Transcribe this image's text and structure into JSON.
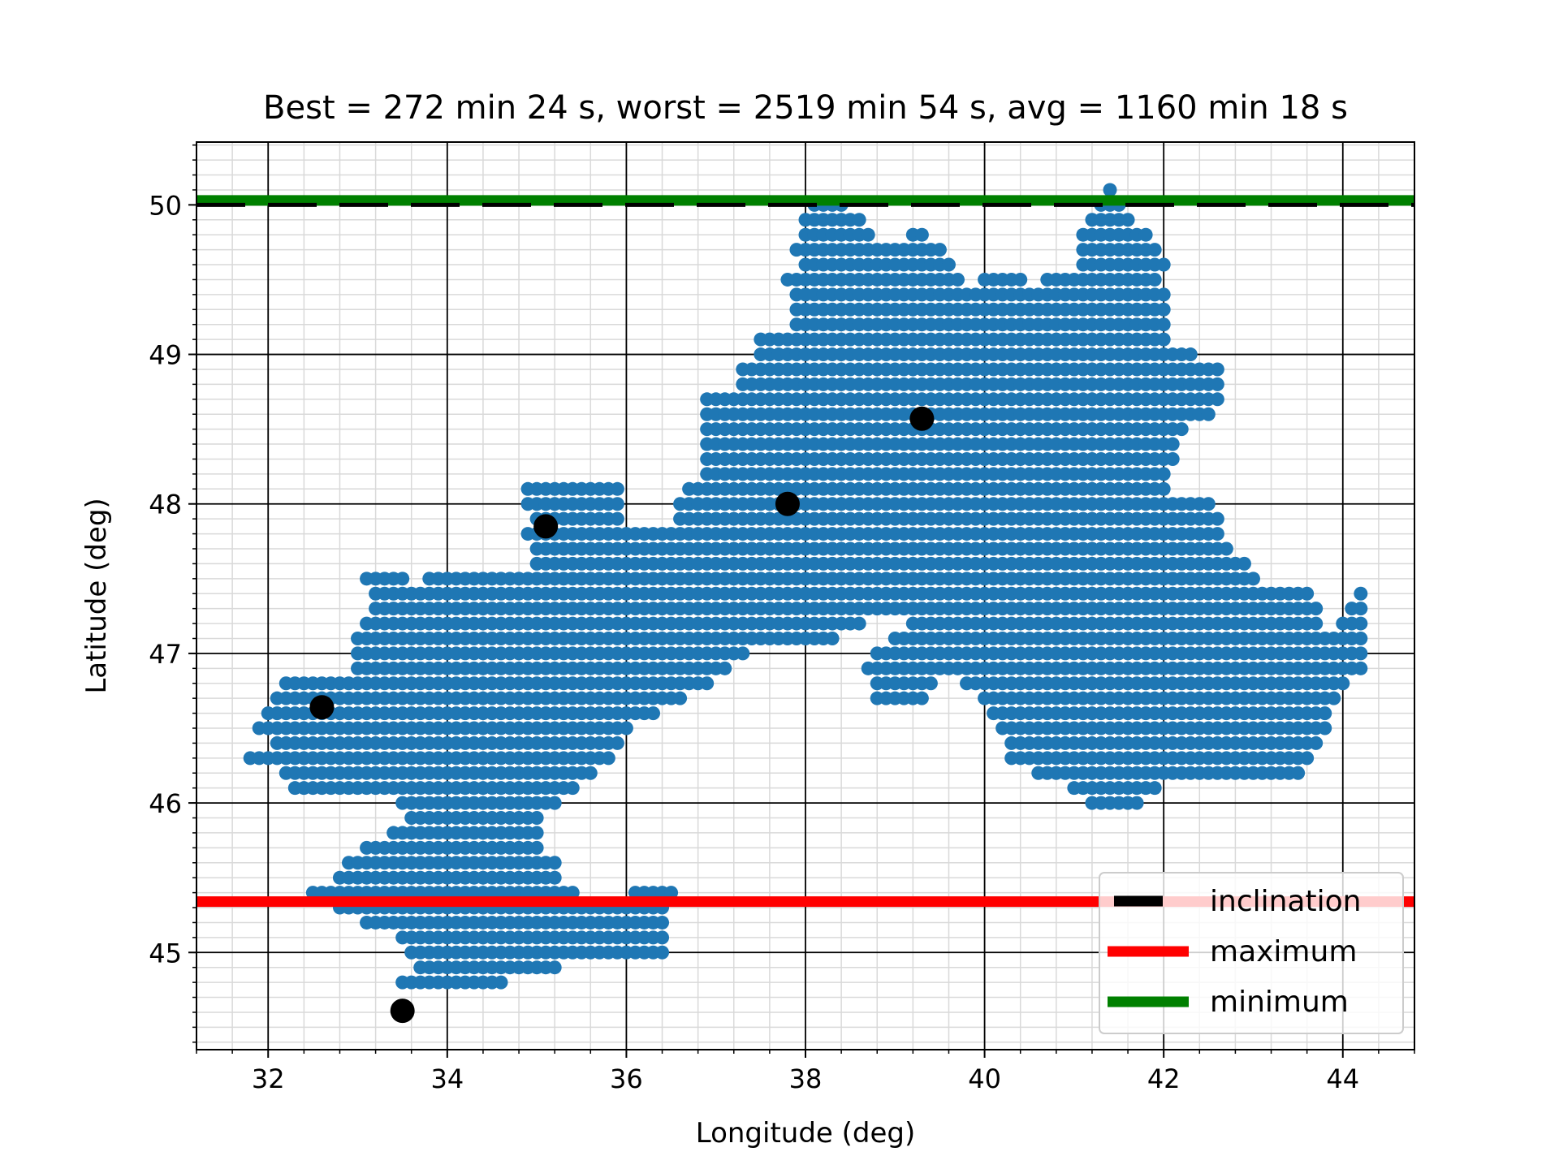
{
  "chart_data": {
    "type": "scatter",
    "title": "Best = 272 min 24 s, worst = 2519 min 54 s, avg = 1160 min 18 s",
    "xlabel": "Longitude (deg)",
    "ylabel": "Latitude (deg)",
    "xlim": [
      31.2,
      44.8
    ],
    "ylim": [
      44.35,
      50.42
    ],
    "x_ticks": [
      32,
      34,
      36,
      38,
      40,
      42,
      44
    ],
    "y_ticks": [
      45,
      46,
      47,
      48,
      49,
      50
    ],
    "x_tick_labels": [
      "32",
      "34",
      "36",
      "38",
      "40",
      "42",
      "44"
    ],
    "y_tick_labels": [
      "45",
      "46",
      "47",
      "48",
      "49",
      "50"
    ],
    "x_minor_step": 0.4,
    "y_minor_step": 0.1,
    "grid": true,
    "legend_position": "lower right",
    "grid_spacing_deg": 0.1,
    "scatter_color": "#1f77b4",
    "region_rows": [
      {
        "lat": 50.1,
        "ranges": [
          [
            41.4,
            41.4
          ]
        ]
      },
      {
        "lat": 50.0,
        "ranges": [
          [
            38.1,
            38.4
          ],
          [
            41.3,
            41.5
          ]
        ]
      },
      {
        "lat": 49.9,
        "ranges": [
          [
            38.0,
            38.6
          ],
          [
            41.2,
            41.6
          ]
        ]
      },
      {
        "lat": 49.8,
        "ranges": [
          [
            38.0,
            38.7
          ],
          [
            39.2,
            39.3
          ],
          [
            41.1,
            41.8
          ]
        ]
      },
      {
        "lat": 49.7,
        "ranges": [
          [
            37.9,
            39.5
          ],
          [
            41.1,
            41.9
          ]
        ]
      },
      {
        "lat": 49.6,
        "ranges": [
          [
            38.0,
            39.6
          ],
          [
            41.1,
            42.0
          ]
        ]
      },
      {
        "lat": 49.5,
        "ranges": [
          [
            37.8,
            39.7
          ],
          [
            40.0,
            40.4
          ],
          [
            40.7,
            41.9
          ]
        ]
      },
      {
        "lat": 49.4,
        "ranges": [
          [
            37.9,
            42.0
          ]
        ]
      },
      {
        "lat": 49.3,
        "ranges": [
          [
            37.9,
            42.0
          ]
        ]
      },
      {
        "lat": 49.2,
        "ranges": [
          [
            37.9,
            42.0
          ]
        ]
      },
      {
        "lat": 49.1,
        "ranges": [
          [
            37.5,
            42.0
          ]
        ]
      },
      {
        "lat": 49.0,
        "ranges": [
          [
            37.5,
            42.3
          ]
        ]
      },
      {
        "lat": 48.9,
        "ranges": [
          [
            37.3,
            42.6
          ]
        ]
      },
      {
        "lat": 48.8,
        "ranges": [
          [
            37.3,
            42.6
          ]
        ]
      },
      {
        "lat": 48.7,
        "ranges": [
          [
            36.9,
            42.6
          ]
        ]
      },
      {
        "lat": 48.6,
        "ranges": [
          [
            36.9,
            42.5
          ]
        ]
      },
      {
        "lat": 48.5,
        "ranges": [
          [
            36.9,
            42.2
          ]
        ]
      },
      {
        "lat": 48.4,
        "ranges": [
          [
            36.9,
            42.1
          ]
        ]
      },
      {
        "lat": 48.3,
        "ranges": [
          [
            36.9,
            42.1
          ]
        ]
      },
      {
        "lat": 48.2,
        "ranges": [
          [
            36.9,
            42.0
          ]
        ]
      },
      {
        "lat": 48.1,
        "ranges": [
          [
            34.9,
            35.9
          ],
          [
            36.7,
            42.0
          ]
        ]
      },
      {
        "lat": 48.0,
        "ranges": [
          [
            34.9,
            35.9
          ],
          [
            36.6,
            42.5
          ]
        ]
      },
      {
        "lat": 47.9,
        "ranges": [
          [
            35.0,
            35.9
          ],
          [
            36.6,
            42.6
          ]
        ]
      },
      {
        "lat": 47.8,
        "ranges": [
          [
            34.9,
            42.6
          ]
        ]
      },
      {
        "lat": 47.7,
        "ranges": [
          [
            35.0,
            42.7
          ]
        ]
      },
      {
        "lat": 47.6,
        "ranges": [
          [
            35.0,
            42.9
          ]
        ]
      },
      {
        "lat": 47.5,
        "ranges": [
          [
            33.1,
            33.5
          ],
          [
            33.8,
            43.0
          ]
        ]
      },
      {
        "lat": 47.4,
        "ranges": [
          [
            33.2,
            43.6
          ],
          [
            44.2,
            44.2
          ]
        ]
      },
      {
        "lat": 47.3,
        "ranges": [
          [
            33.2,
            43.7
          ],
          [
            44.1,
            44.2
          ]
        ]
      },
      {
        "lat": 47.2,
        "ranges": [
          [
            33.1,
            38.6
          ],
          [
            39.2,
            43.7
          ],
          [
            44.0,
            44.2
          ]
        ]
      },
      {
        "lat": 47.1,
        "ranges": [
          [
            33.0,
            38.3
          ],
          [
            39.0,
            44.2
          ]
        ]
      },
      {
        "lat": 47.0,
        "ranges": [
          [
            33.0,
            37.3
          ],
          [
            38.8,
            44.2
          ]
        ]
      },
      {
        "lat": 46.9,
        "ranges": [
          [
            33.0,
            37.1
          ],
          [
            38.7,
            44.2
          ]
        ]
      },
      {
        "lat": 46.8,
        "ranges": [
          [
            32.2,
            36.9
          ],
          [
            38.8,
            39.4
          ],
          [
            39.8,
            44.0
          ]
        ]
      },
      {
        "lat": 46.7,
        "ranges": [
          [
            32.1,
            36.6
          ],
          [
            38.8,
            39.3
          ],
          [
            40.0,
            43.9
          ]
        ]
      },
      {
        "lat": 46.6,
        "ranges": [
          [
            32.0,
            36.3
          ],
          [
            40.1,
            43.8
          ]
        ]
      },
      {
        "lat": 46.5,
        "ranges": [
          [
            31.9,
            36.0
          ],
          [
            40.2,
            43.8
          ]
        ]
      },
      {
        "lat": 46.4,
        "ranges": [
          [
            32.1,
            35.9
          ],
          [
            40.3,
            43.7
          ]
        ]
      },
      {
        "lat": 46.3,
        "ranges": [
          [
            31.8,
            35.8
          ],
          [
            40.3,
            43.6
          ]
        ]
      },
      {
        "lat": 46.2,
        "ranges": [
          [
            32.2,
            35.6
          ],
          [
            40.6,
            43.5
          ]
        ]
      },
      {
        "lat": 46.1,
        "ranges": [
          [
            32.3,
            35.4
          ],
          [
            41.0,
            41.9
          ]
        ]
      },
      {
        "lat": 46.0,
        "ranges": [
          [
            33.5,
            35.2
          ],
          [
            41.2,
            41.7
          ]
        ]
      },
      {
        "lat": 45.9,
        "ranges": [
          [
            33.6,
            35.0
          ]
        ]
      },
      {
        "lat": 45.8,
        "ranges": [
          [
            33.4,
            35.0
          ]
        ]
      },
      {
        "lat": 45.7,
        "ranges": [
          [
            33.1,
            35.0
          ]
        ]
      },
      {
        "lat": 45.6,
        "ranges": [
          [
            32.9,
            35.2
          ]
        ]
      },
      {
        "lat": 45.5,
        "ranges": [
          [
            32.8,
            35.2
          ]
        ]
      },
      {
        "lat": 45.4,
        "ranges": [
          [
            32.5,
            35.4
          ],
          [
            36.1,
            36.5
          ]
        ]
      },
      {
        "lat": 45.3,
        "ranges": [
          [
            32.8,
            36.4
          ]
        ]
      },
      {
        "lat": 45.2,
        "ranges": [
          [
            33.1,
            36.4
          ]
        ]
      },
      {
        "lat": 45.1,
        "ranges": [
          [
            33.5,
            36.4
          ]
        ]
      },
      {
        "lat": 45.0,
        "ranges": [
          [
            33.6,
            36.4
          ]
        ]
      },
      {
        "lat": 44.9,
        "ranges": [
          [
            33.7,
            35.2
          ]
        ]
      },
      {
        "lat": 44.8,
        "ranges": [
          [
            33.5,
            34.6
          ]
        ]
      }
    ],
    "stations": [
      {
        "lon": 32.6,
        "lat": 46.64
      },
      {
        "lon": 33.5,
        "lat": 44.61
      },
      {
        "lon": 35.1,
        "lat": 47.85
      },
      {
        "lon": 37.8,
        "lat": 48.0
      },
      {
        "lon": 39.3,
        "lat": 48.57
      }
    ],
    "lines": [
      {
        "name": "inclination",
        "lat": 50.0,
        "color": "#000000",
        "style": "dashed"
      },
      {
        "name": "maximum",
        "lat": 45.34,
        "color": "#ff0000",
        "style": "solid"
      },
      {
        "name": "minimum",
        "lat": 50.03,
        "color": "#008000",
        "style": "solid"
      }
    ]
  }
}
